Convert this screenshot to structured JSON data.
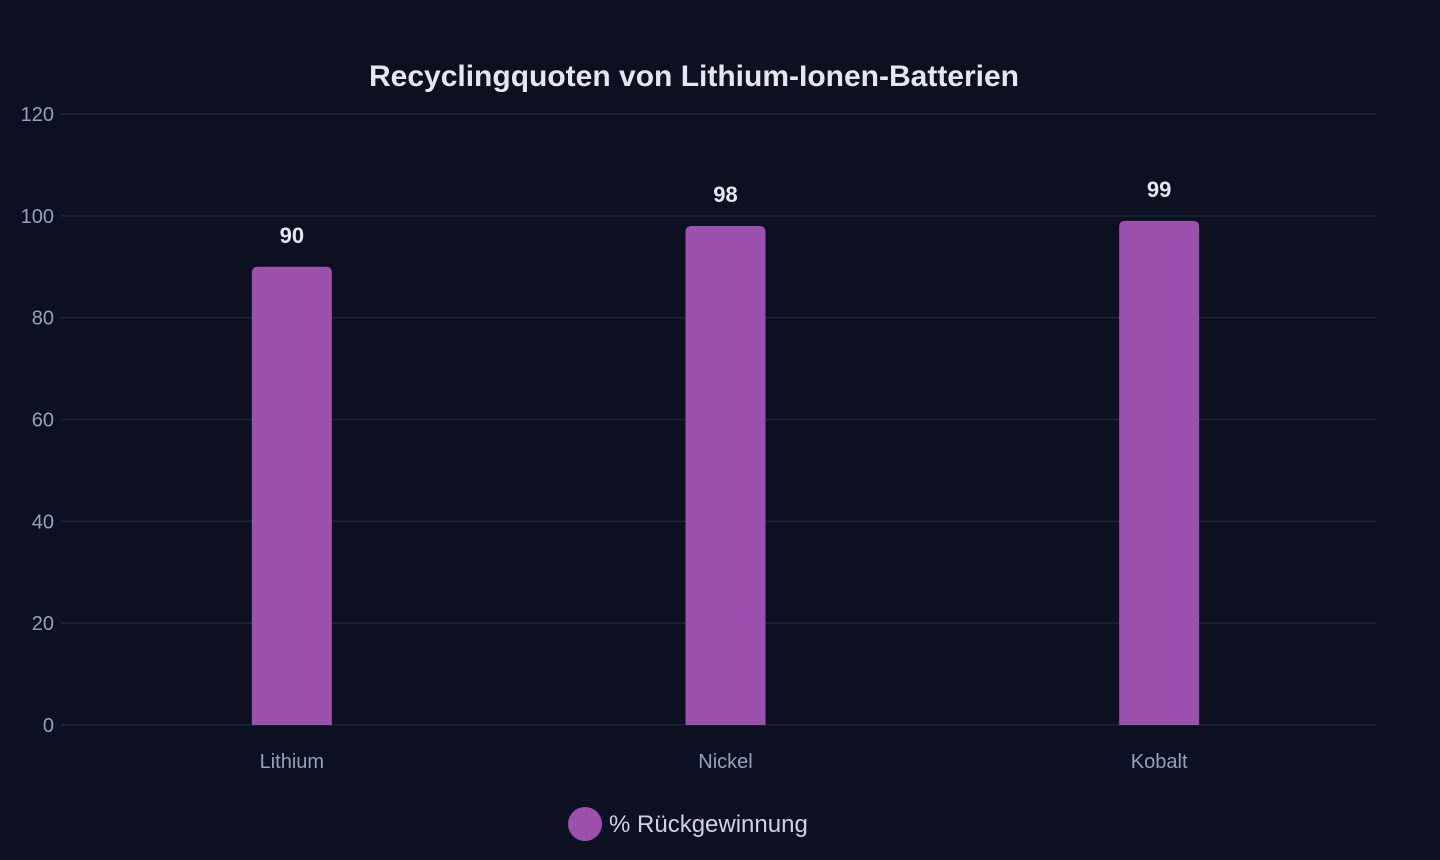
{
  "chart_data": {
    "type": "bar",
    "title": "Recyclingquoten von Lithium-Ionen-Batterien",
    "xlabel": "",
    "ylabel": "",
    "categories": [
      "Lithium",
      "Nickel",
      "Kobalt"
    ],
    "series": [
      {
        "name": "% Rückgewinnung",
        "values": [
          90,
          98,
          99
        ],
        "color": "#9b51ad"
      }
    ],
    "ylim": [
      0,
      120
    ],
    "yticks": [
      0,
      20,
      40,
      60,
      80,
      100,
      120
    ],
    "grid": true,
    "legend_position": "bottom-center",
    "data_labels": true
  },
  "colors": {
    "background": "#0b1120",
    "bar": "#9b51ad",
    "grid": "#1e2536"
  }
}
